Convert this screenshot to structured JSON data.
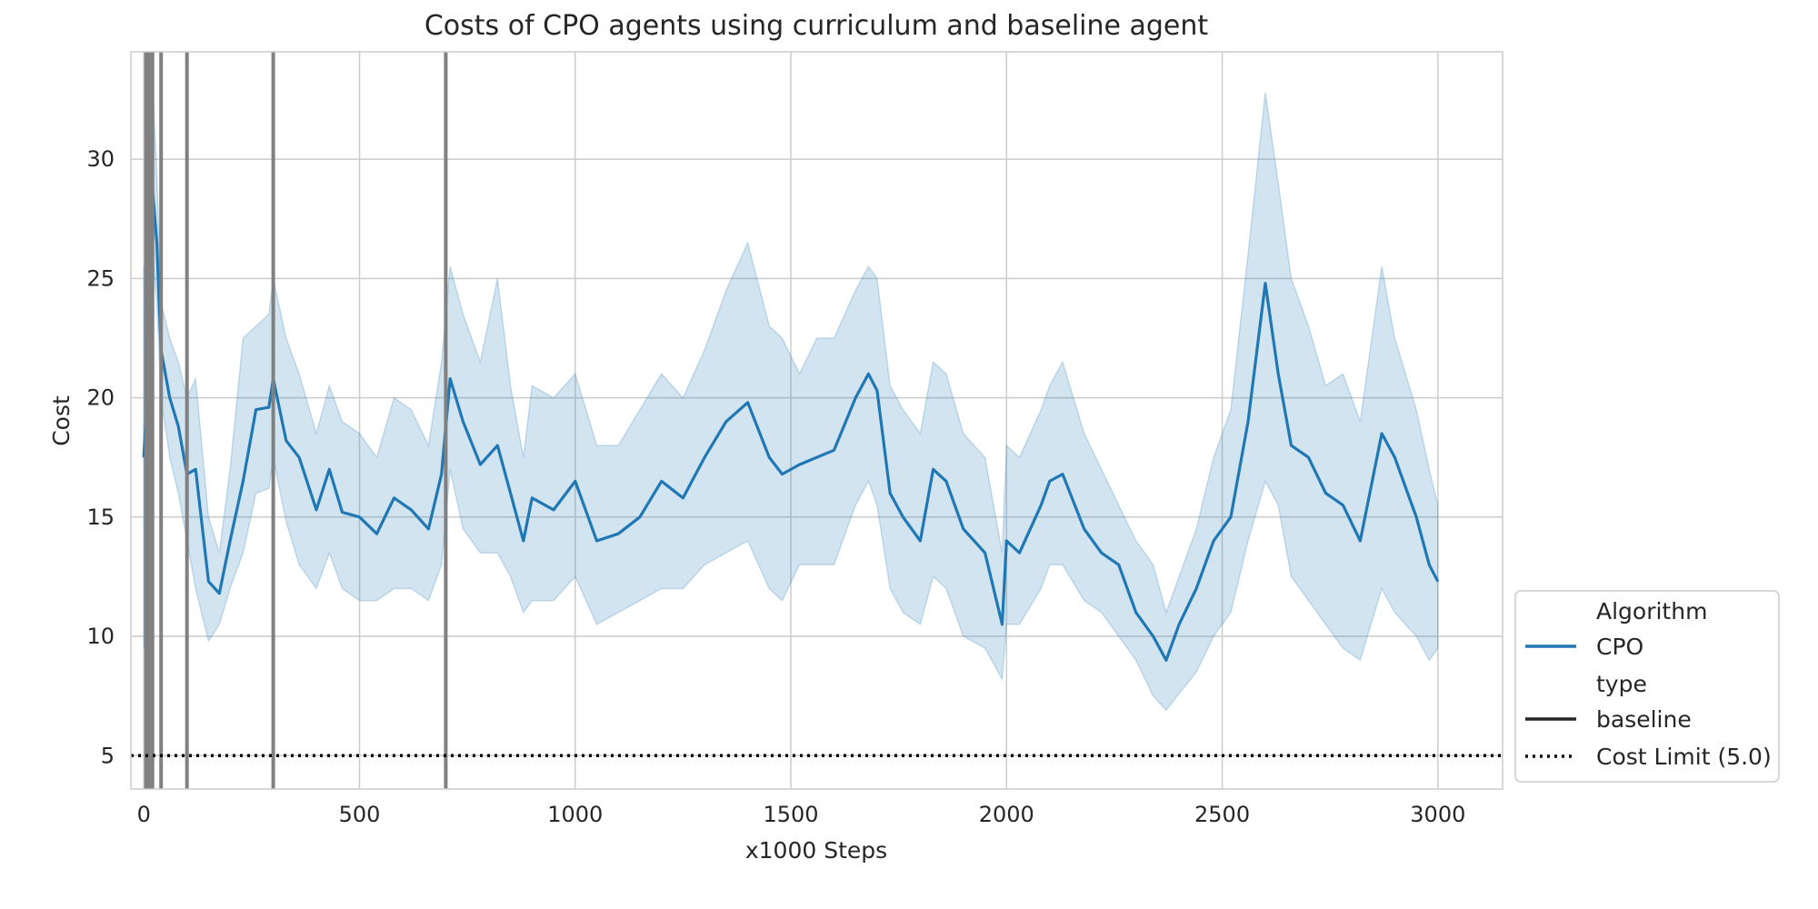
{
  "chart_data": {
    "type": "line",
    "title": "Costs of CPO agents using curriculum and baseline agent",
    "xlabel": "x1000 Steps",
    "ylabel": "Cost",
    "xlim": [
      -30,
      3150
    ],
    "ylim": [
      3.6,
      34.5
    ],
    "xticks": [
      0,
      500,
      1000,
      1500,
      2000,
      2500,
      3000
    ],
    "yticks": [
      5,
      10,
      15,
      20,
      25,
      30
    ],
    "grid": true,
    "legend_position": "lower-right-outside",
    "legend": [
      {
        "label": "Algorithm",
        "kind": "header"
      },
      {
        "label": "CPO",
        "kind": "line",
        "color": "#1f77b4",
        "style": "solid"
      },
      {
        "label": "type",
        "kind": "header"
      },
      {
        "label": "baseline",
        "kind": "line",
        "color": "#262626",
        "style": "solid"
      },
      {
        "label": "Cost Limit (5.0)",
        "kind": "line",
        "color": "#000000",
        "style": "dotted"
      }
    ],
    "cost_limit": 5.0,
    "curriculum_switches": [
      5,
      12,
      20,
      40,
      100,
      300,
      700
    ],
    "series": [
      {
        "name": "CPO",
        "color": "#1f77b4",
        "x": [
          0,
          10,
          20,
          30,
          40,
          60,
          80,
          100,
          120,
          150,
          175,
          200,
          230,
          260,
          290,
          300,
          330,
          360,
          400,
          430,
          460,
          500,
          540,
          580,
          620,
          660,
          690,
          710,
          740,
          780,
          820,
          850,
          880,
          900,
          950,
          1000,
          1050,
          1100,
          1150,
          1200,
          1250,
          1300,
          1350,
          1400,
          1450,
          1480,
          1520,
          1560,
          1600,
          1650,
          1680,
          1700,
          1730,
          1760,
          1800,
          1830,
          1860,
          1900,
          1950,
          1990,
          2000,
          2030,
          2080,
          2100,
          2130,
          2180,
          2220,
          2260,
          2300,
          2340,
          2370,
          2400,
          2440,
          2480,
          2520,
          2560,
          2600,
          2630,
          2660,
          2700,
          2740,
          2780,
          2820,
          2870,
          2900,
          2950,
          2980,
          3000
        ],
        "y": [
          17.5,
          21.0,
          28.8,
          26.5,
          22.0,
          20.0,
          18.8,
          16.8,
          17.0,
          12.3,
          11.8,
          14.0,
          16.5,
          19.5,
          19.6,
          20.8,
          18.2,
          17.5,
          15.3,
          17.0,
          15.2,
          15.0,
          14.3,
          15.8,
          15.3,
          14.5,
          16.8,
          20.8,
          19.0,
          17.2,
          18.0,
          16.0,
          14.0,
          15.8,
          15.3,
          16.5,
          14.0,
          14.3,
          15.0,
          16.5,
          15.8,
          17.5,
          19.0,
          19.8,
          17.5,
          16.8,
          17.2,
          17.5,
          17.8,
          20.0,
          21.0,
          20.3,
          16.0,
          15.0,
          14.0,
          17.0,
          16.5,
          14.5,
          13.5,
          10.5,
          14.0,
          13.5,
          15.5,
          16.5,
          16.8,
          14.5,
          13.5,
          13.0,
          11.0,
          10.0,
          9.0,
          10.5,
          12.0,
          14.0,
          15.0,
          19.0,
          24.8,
          21.0,
          18.0,
          17.5,
          16.0,
          15.5,
          14.0,
          18.5,
          17.5,
          15.0,
          13.0,
          12.3
        ],
        "ci_lower": [
          9.5,
          11.5,
          26.0,
          24.0,
          20.0,
          17.5,
          16.0,
          14.0,
          12.0,
          9.8,
          10.5,
          12.0,
          13.5,
          16.0,
          16.2,
          17.5,
          14.8,
          13.0,
          12.0,
          13.5,
          12.0,
          11.5,
          11.5,
          12.0,
          12.0,
          11.5,
          13.0,
          17.0,
          14.5,
          13.5,
          13.5,
          12.5,
          11.0,
          11.5,
          11.5,
          12.5,
          10.5,
          11.0,
          11.5,
          12.0,
          12.0,
          13.0,
          13.5,
          14.0,
          12.0,
          11.5,
          13.0,
          13.0,
          13.0,
          15.5,
          16.5,
          15.5,
          12.0,
          11.0,
          10.5,
          12.5,
          12.0,
          10.0,
          9.5,
          8.2,
          10.5,
          10.5,
          12.0,
          13.0,
          13.0,
          11.5,
          11.0,
          10.0,
          9.0,
          7.5,
          6.9,
          7.6,
          8.5,
          10.0,
          11.0,
          14.0,
          16.5,
          15.5,
          12.5,
          11.5,
          10.5,
          9.5,
          9.0,
          12.0,
          11.0,
          10.0,
          9.0,
          9.5
        ],
        "ci_upper": [
          25.5,
          25.0,
          33.2,
          29.5,
          24.0,
          22.5,
          21.5,
          20.0,
          20.8,
          15.0,
          13.5,
          17.0,
          22.5,
          23.0,
          23.5,
          25.0,
          22.5,
          21.0,
          18.5,
          20.5,
          19.0,
          18.5,
          17.5,
          20.0,
          19.5,
          18.0,
          21.5,
          25.5,
          23.5,
          21.5,
          25.0,
          20.5,
          17.5,
          20.5,
          20.0,
          21.0,
          18.0,
          18.0,
          19.5,
          21.0,
          20.0,
          22.0,
          24.5,
          26.5,
          23.0,
          22.5,
          21.0,
          22.5,
          22.5,
          24.5,
          25.5,
          25.0,
          20.5,
          19.5,
          18.5,
          21.5,
          21.0,
          18.5,
          17.5,
          13.5,
          18.0,
          17.5,
          19.5,
          20.5,
          21.5,
          18.5,
          17.0,
          15.5,
          14.0,
          13.0,
          11.0,
          12.5,
          14.5,
          17.5,
          19.5,
          26.0,
          32.8,
          29.0,
          25.0,
          23.0,
          20.5,
          21.0,
          19.0,
          25.5,
          22.5,
          19.5,
          17.0,
          15.5
        ]
      }
    ]
  }
}
